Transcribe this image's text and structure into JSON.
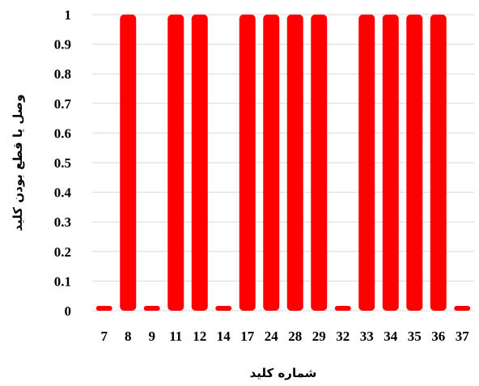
{
  "chart_data": {
    "type": "bar",
    "title": "",
    "xlabel": "شماره کلید",
    "ylabel": "وصل یا قطع بودن کلید",
    "categories": [
      "7",
      "8",
      "9",
      "11",
      "12",
      "14",
      "17",
      "24",
      "28",
      "29",
      "32",
      "33",
      "34",
      "35",
      "36",
      "37"
    ],
    "values": [
      0,
      1,
      0,
      1,
      1,
      0,
      1,
      1,
      1,
      1,
      0,
      1,
      1,
      1,
      1,
      0
    ],
    "ylim": [
      0,
      1
    ],
    "yticks": [
      "0",
      "0.1",
      "0.2",
      "0.3",
      "0.4",
      "0.5",
      "0.6",
      "0.7",
      "0.8",
      "0.9",
      "1"
    ],
    "grid": true,
    "legend": "none",
    "bar_color": "#FF0000",
    "grid_color": "#D9D9D9"
  }
}
